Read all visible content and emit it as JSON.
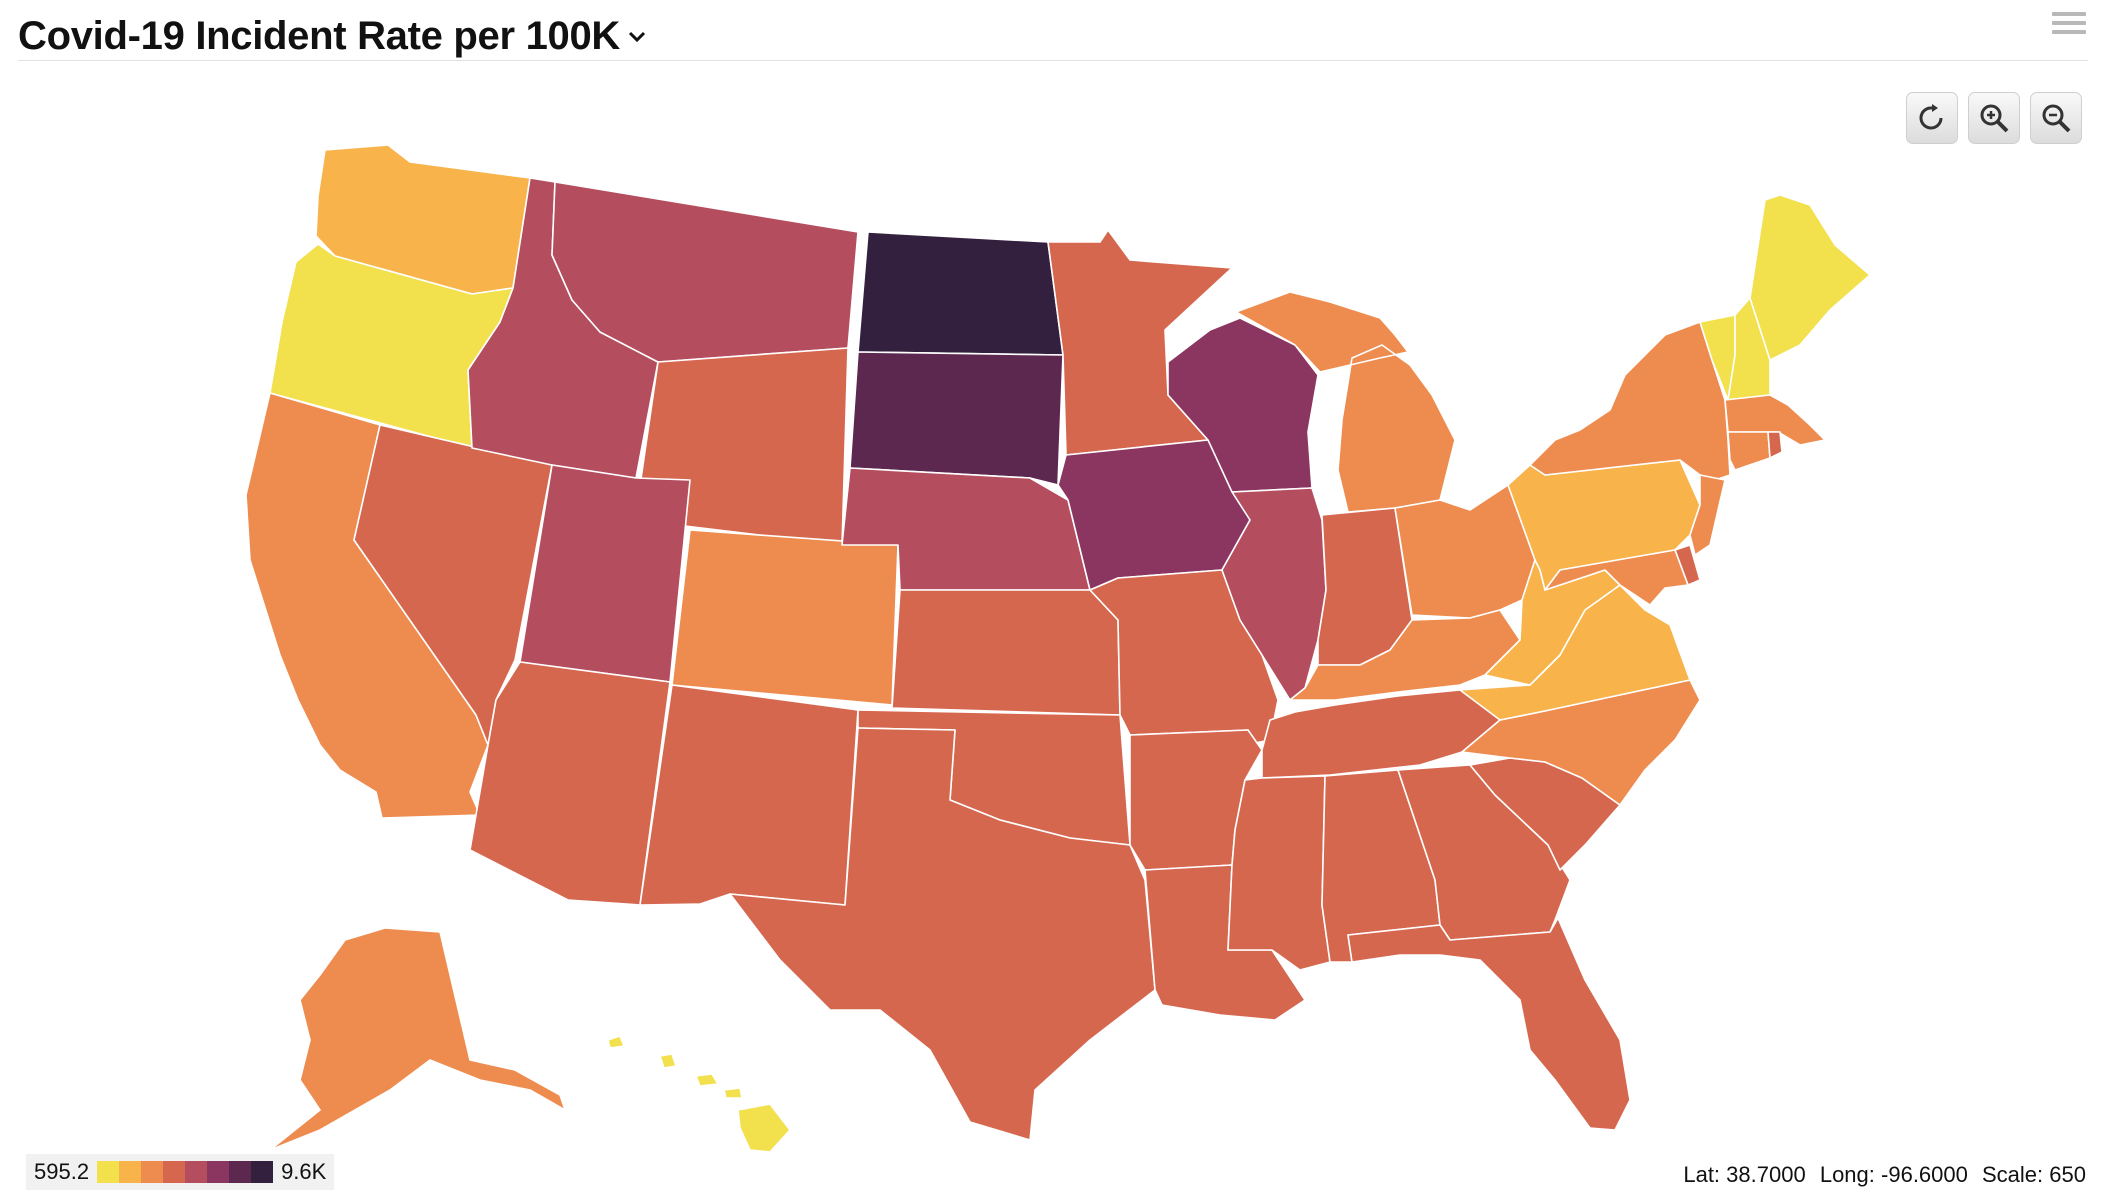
{
  "header": {
    "title": "Covid-19 Incident Rate per 100K",
    "chevron_icon": "chevron-down-icon",
    "menu_icon": "hamburger-menu-icon"
  },
  "controls": {
    "reset_icon": "reset-view-icon",
    "zoom_in_icon": "zoom-in-icon",
    "zoom_out_icon": "zoom-out-icon"
  },
  "legend": {
    "min_label": "595.2",
    "max_label": "9.6K",
    "colors": [
      "#f2e04d",
      "#f8b34a",
      "#ee8b4e",
      "#d6674f",
      "#b44d5e",
      "#8b3660",
      "#5c2850",
      "#33203f"
    ]
  },
  "status": {
    "lat_label": "Lat:",
    "lat_value": "38.7000",
    "long_label": "Long:",
    "long_value": "-96.6000",
    "scale_label": "Scale:",
    "scale_value": "650"
  },
  "map": {
    "level_colors": [
      "#f2e04d",
      "#f8b34a",
      "#ee8b4e",
      "#d6674f",
      "#b44d5e",
      "#8b3660",
      "#5c2850",
      "#33203f"
    ],
    "states": [
      {
        "id": "WA",
        "level": 1
      },
      {
        "id": "OR",
        "level": 0
      },
      {
        "id": "CA",
        "level": 2
      },
      {
        "id": "NV",
        "level": 3
      },
      {
        "id": "ID",
        "level": 4
      },
      {
        "id": "MT",
        "level": 4
      },
      {
        "id": "WY",
        "level": 3
      },
      {
        "id": "UT",
        "level": 4
      },
      {
        "id": "AZ",
        "level": 3
      },
      {
        "id": "CO",
        "level": 2
      },
      {
        "id": "NM",
        "level": 3
      },
      {
        "id": "ND",
        "level": 7
      },
      {
        "id": "SD",
        "level": 6
      },
      {
        "id": "NE",
        "level": 4
      },
      {
        "id": "KS",
        "level": 3
      },
      {
        "id": "OK",
        "level": 3
      },
      {
        "id": "TX",
        "level": 3
      },
      {
        "id": "MN",
        "level": 3
      },
      {
        "id": "IA",
        "level": 5
      },
      {
        "id": "MO",
        "level": 3
      },
      {
        "id": "AR",
        "level": 3
      },
      {
        "id": "LA",
        "level": 3
      },
      {
        "id": "WI",
        "level": 5
      },
      {
        "id": "IL",
        "level": 4
      },
      {
        "id": "MI",
        "level": 2
      },
      {
        "id": "IN",
        "level": 3
      },
      {
        "id": "OH",
        "level": 2
      },
      {
        "id": "KY",
        "level": 2
      },
      {
        "id": "TN",
        "level": 3
      },
      {
        "id": "MS",
        "level": 3
      },
      {
        "id": "AL",
        "level": 3
      },
      {
        "id": "GA",
        "level": 3
      },
      {
        "id": "FL",
        "level": 3
      },
      {
        "id": "SC",
        "level": 3
      },
      {
        "id": "NC",
        "level": 2
      },
      {
        "id": "VA",
        "level": 1
      },
      {
        "id": "WV",
        "level": 1
      },
      {
        "id": "PA",
        "level": 1
      },
      {
        "id": "NY",
        "level": 2
      },
      {
        "id": "VT",
        "level": 0
      },
      {
        "id": "NH",
        "level": 0
      },
      {
        "id": "ME",
        "level": 0
      },
      {
        "id": "MA",
        "level": 2
      },
      {
        "id": "CT",
        "level": 2
      },
      {
        "id": "RI",
        "level": 3
      },
      {
        "id": "NJ",
        "level": 2
      },
      {
        "id": "DE",
        "level": 3
      },
      {
        "id": "MD",
        "level": 2
      },
      {
        "id": "AK",
        "level": 2
      },
      {
        "id": "HI",
        "level": 0
      }
    ]
  }
}
